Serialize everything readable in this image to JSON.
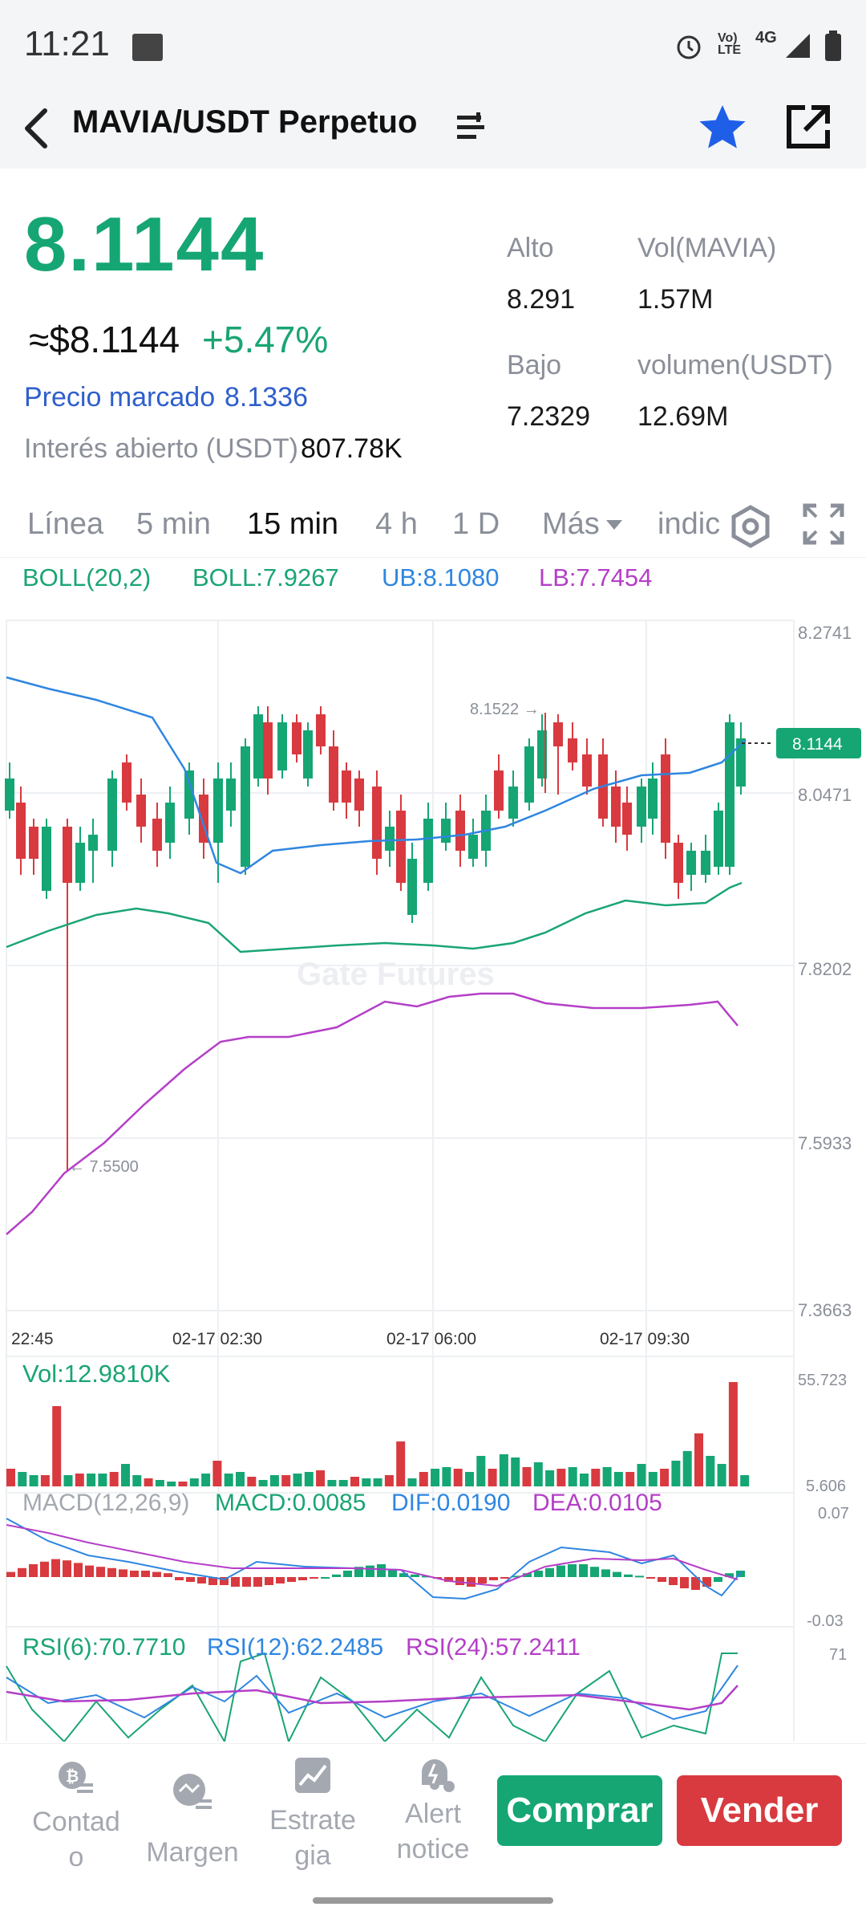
{
  "status": {
    "time": "11:21",
    "network": "4G"
  },
  "header": {
    "pair": "MAVIA/USDT Perpetuo"
  },
  "price": {
    "last": "8.1144",
    "usd": "≈$8.1144",
    "change": "+5.47%",
    "mark_label": "Precio marcado",
    "mark_value": "8.1336",
    "oi_label": "Interés abierto (USDT)",
    "oi_value": "807.78K"
  },
  "stats": {
    "high_label": "Alto",
    "high_value": "8.291",
    "vol_mavia_label": "Vol(MAVIA)",
    "vol_mavia_value": "1.57M",
    "low_label": "Bajo",
    "low_value": "7.2329",
    "vol_usdt_label": "volumen(USDT)",
    "vol_usdt_value": "12.69M"
  },
  "tabs": [
    "Línea",
    "5 min",
    "15 min",
    "4 h",
    "1 D",
    "Más",
    "indic"
  ],
  "active_tab": "15 min",
  "boll": {
    "label": "BOLL(20,2)",
    "mid": "BOLL:7.9267",
    "ub": "UB:8.1080",
    "lb": "LB:7.7454"
  },
  "chart": {
    "y_ticks": [
      "8.2741",
      "8.0471",
      "7.8202",
      "7.5933",
      "7.3663"
    ],
    "x_ticks": [
      "22:45",
      "02-17 02:30",
      "02-17 06:00",
      "02-17 09:30"
    ],
    "high_marker": "8.1522 →",
    "low_marker": "← 7.5500",
    "last_tag": "8.1144",
    "watermark": "Gate Futures"
  },
  "volume": {
    "label": "Vol:12.9810K",
    "max": "55.723",
    "min": "5.606"
  },
  "macd": {
    "label": "MACD(12,26,9)",
    "macd": "MACD:0.0085",
    "dif": "DIF:0.0190",
    "dea": "DEA:0.0105",
    "max": "0.07",
    "min": "-0.03"
  },
  "rsi": {
    "r6": "RSI(6):70.7710",
    "r12": "RSI(12):62.2485",
    "r24": "RSI(24):57.2411",
    "max": "71"
  },
  "nav": {
    "contado": "Contad\no",
    "margen": "Margen",
    "estrategia": "Estrate\ngia",
    "alert": "Alert\nnotice"
  },
  "actions": {
    "buy": "Comprar",
    "sell": "Vender"
  },
  "colors": {
    "up": "#15a674",
    "down": "#d83a3f",
    "ub": "#2f86e0",
    "mid": "#1aa573",
    "lb": "#b43fc7"
  },
  "chart_data": {
    "type": "candlestick",
    "interval": "15 min",
    "ylim": [
      7.3663,
      8.2741
    ],
    "last": 8.1144
  }
}
